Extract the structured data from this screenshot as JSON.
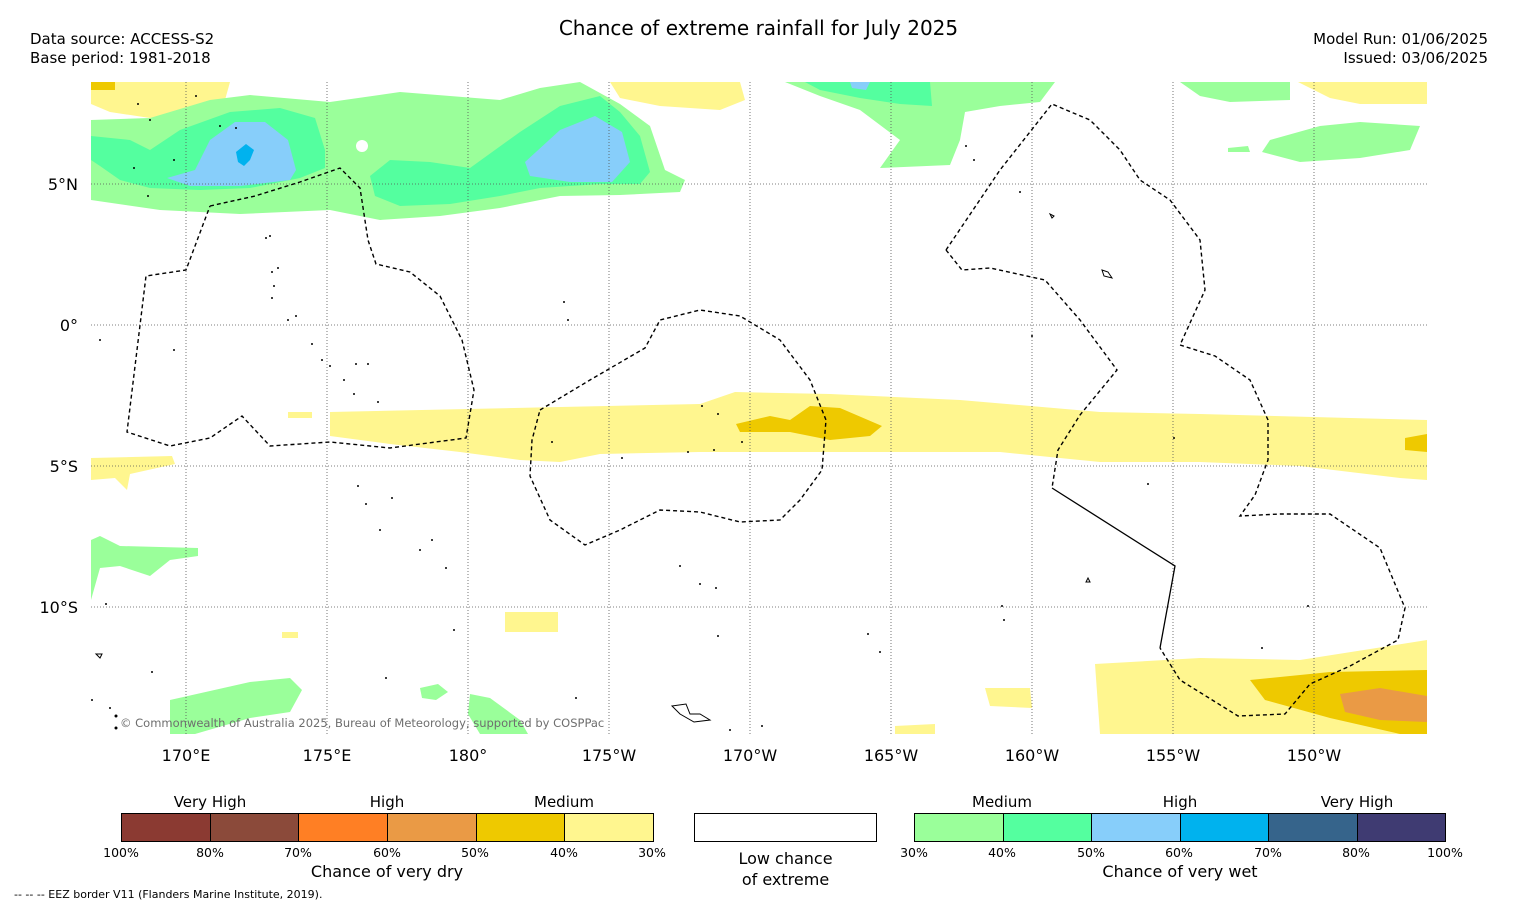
{
  "title": "Chance of extreme rainfall for July 2025",
  "data_source": "Data source: ACCESS-S2",
  "base_period": "Base period: 1981-2018",
  "model_run": "Model Run: 01/06/2025",
  "issued": "Issued: 03/06/2025",
  "lat_labels": [
    "5°N",
    "0°",
    "5°S",
    "10°S"
  ],
  "lon_labels": [
    "170°E",
    "175°E",
    "180°",
    "175°W",
    "170°W",
    "165°W",
    "160°W",
    "155°W",
    "150°W"
  ],
  "copyright": "© Commonwealth of Australia 2025, Bureau of Meteorology, supported by COSPPac",
  "dry_legend": {
    "headings": [
      "Very High",
      "High",
      "Medium"
    ],
    "ticks": [
      "100%",
      "80%",
      "70%",
      "60%",
      "50%",
      "40%",
      "30%"
    ],
    "colors": [
      "#8b3a32",
      "#8b4a3a",
      "#ff7f24",
      "#ea9a45",
      "#eec900",
      "#fff68f"
    ],
    "title": "Chance of very dry"
  },
  "neutral_legend": {
    "title_line1": "Low chance",
    "title_line2": "of extreme",
    "color": "#ffffff"
  },
  "wet_legend": {
    "headings": [
      "Medium",
      "High",
      "Very High"
    ],
    "ticks": [
      "30%",
      "40%",
      "50%",
      "60%",
      "70%",
      "80%",
      "100%"
    ],
    "colors": [
      "#9aff9a",
      "#54ff9f",
      "#87cefa",
      "#00b2ee",
      "#36648b",
      "#3f3b72"
    ],
    "title": "Chance of very wet"
  },
  "footnote": "-- -- -- EEZ border V11 (Flanders Marine Institute, 2019)."
}
